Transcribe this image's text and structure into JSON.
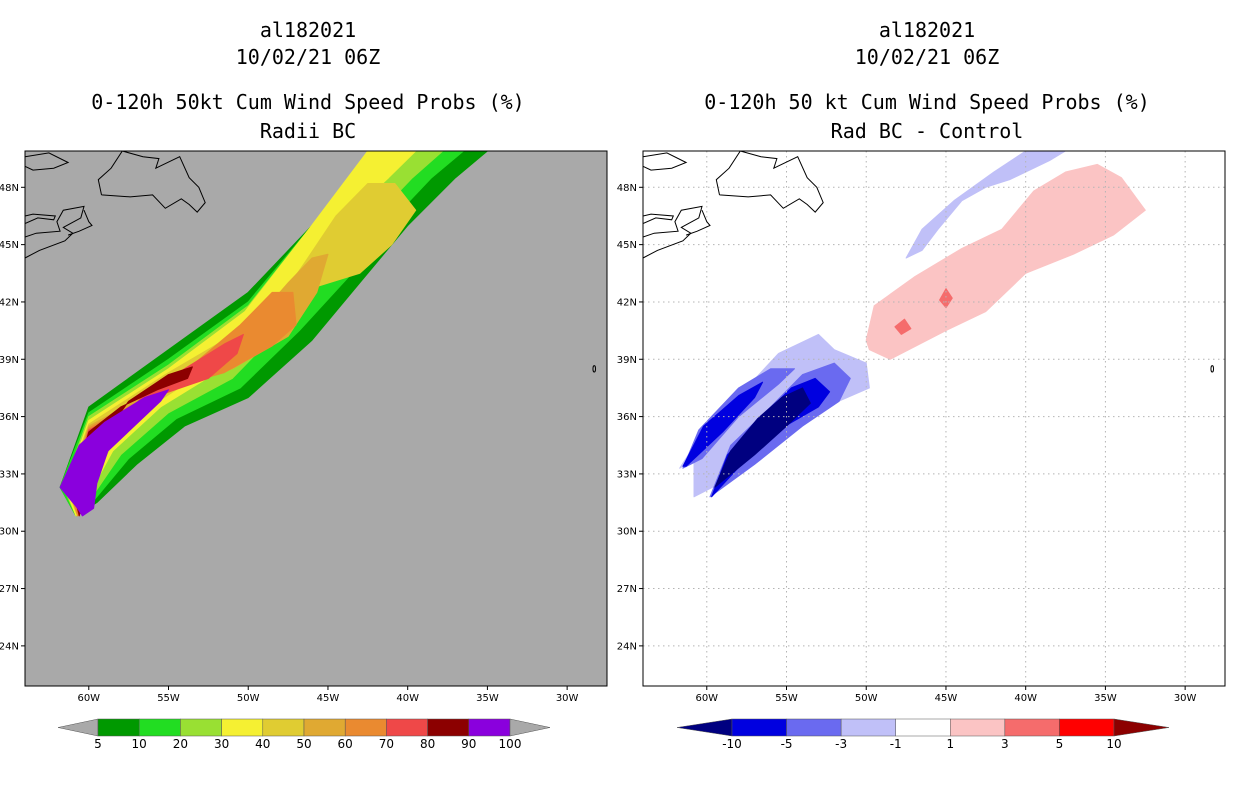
{
  "chart_data": [
    {
      "type": "heatmap",
      "title_lines": [
        "al182021",
        "10/02/21 06Z",
        "0-120h 50kt Cum Wind Speed Probs (%)",
        "Radii BC"
      ],
      "xlabel": "",
      "ylabel": "",
      "x_ticks": [
        "60W",
        "55W",
        "50W",
        "45W",
        "40W",
        "35W",
        "30W"
      ],
      "x_tick_values": [
        -60,
        -55,
        -50,
        -45,
        -40,
        -35,
        -30
      ],
      "y_ticks": [
        "24N",
        "27N",
        "30N",
        "33N",
        "36N",
        "39N",
        "42N",
        "45N",
        "48N"
      ],
      "y_tick_values": [
        24,
        27,
        30,
        33,
        36,
        39,
        42,
        45,
        48
      ],
      "lon_range": [
        -64,
        -27.5
      ],
      "lat_range": [
        21.9,
        49.9
      ],
      "background_color": "#a9a9a9",
      "grid": false,
      "legend": {
        "placement": "bottom",
        "labels": [
          "5",
          "10",
          "20",
          "30",
          "40",
          "50",
          "60",
          "70",
          "80",
          "90",
          "100"
        ],
        "colors": [
          "#009900",
          "#22dd22",
          "#99e033",
          "#f5f032",
          "#e0cc32",
          "#e0a932",
          "#ea8a30",
          "#ef4848",
          "#8c0000",
          "#8a00dd"
        ],
        "under_color": "#a9a9a9",
        "over_color": "#a9a9a9"
      },
      "series": [
        {
          "name": "5",
          "color": "#009900",
          "lon": [
            -60.8,
            -59.5,
            -57,
            -54,
            -50,
            -46,
            -43,
            -40,
            -37,
            -35,
            -32.8,
            -38,
            -42,
            -46,
            -50,
            -55,
            -60,
            -61.8
          ],
          "lat": [
            30.8,
            31.5,
            33.5,
            35.5,
            37,
            40,
            43,
            46,
            48.5,
            49.9,
            49.9,
            49.9,
            49.9,
            46,
            42.5,
            39.5,
            36.5,
            32.3
          ]
        },
        {
          "name": "10",
          "color": "#22dd22",
          "lon": [
            -60.8,
            -59.7,
            -57.5,
            -54.5,
            -50.5,
            -46.8,
            -43.5,
            -41,
            -38.5,
            -36.5,
            -34.2,
            -38,
            -42,
            -46,
            -50,
            -55,
            -60,
            -61.8
          ],
          "lat": [
            30.8,
            31.6,
            33.8,
            35.9,
            37.5,
            40.5,
            43.5,
            46.3,
            48.5,
            49.9,
            49.9,
            49.9,
            49.9,
            46,
            42,
            39,
            36.2,
            32.3
          ]
        },
        {
          "name": "20",
          "color": "#99e033",
          "lon": [
            -60.8,
            -59.8,
            -58,
            -55,
            -51,
            -47.5,
            -44.5,
            -42,
            -39.7,
            -37.8,
            -36,
            -38.5,
            -42,
            -46,
            -50,
            -55,
            -60,
            -61.6
          ],
          "lat": [
            30.8,
            31.8,
            34,
            36.2,
            38,
            41,
            44,
            46.5,
            48.5,
            49.9,
            49.9,
            49.9,
            49.9,
            46,
            41.8,
            38.7,
            36,
            32.3
          ]
        },
        {
          "name": "30",
          "color": "#f5f032",
          "lon": [
            -60.8,
            -60,
            -58.5,
            -55.5,
            -52,
            -48.5,
            -45.8,
            -43.5,
            -41.2,
            -39.5,
            -37.5,
            -40,
            -42.5,
            -46.2,
            -50.2,
            -55,
            -60,
            -61.5
          ],
          "lat": [
            30.8,
            31.9,
            34.2,
            36.5,
            38.3,
            41.2,
            44.2,
            46.7,
            48.5,
            49.9,
            49.9,
            49.9,
            49.9,
            45.8,
            41.5,
            38.5,
            35.8,
            32.3
          ]
        },
        {
          "name": "40",
          "color": "#e0cc32",
          "lon": [
            -60.7,
            -60,
            -58.7,
            -56,
            -52.5,
            -49,
            -46.5,
            -44.5,
            -42.5,
            -40.8,
            -39.5,
            -41,
            -43,
            -46.5,
            -50.5,
            -55.2,
            -60,
            -61.4
          ],
          "lat": [
            30.8,
            32,
            34.3,
            36.6,
            38.5,
            41,
            44,
            46.5,
            48.2,
            48.2,
            46.8,
            45,
            43.5,
            42.6,
            40.5,
            38.2,
            35.6,
            32.3
          ]
        },
        {
          "name": "50",
          "color": "#e0a932",
          "lon": [
            -60.7,
            -60,
            -58.8,
            -56.3,
            -53,
            -49.8,
            -47.5,
            -46,
            -45,
            -45.7,
            -47.5,
            -51,
            -55.5,
            -60,
            -61.3
          ],
          "lat": [
            30.8,
            32,
            34.4,
            36.7,
            38.6,
            40.8,
            43,
            44.3,
            44.5,
            42.5,
            40.2,
            38.5,
            37.5,
            35.5,
            32.3
          ]
        },
        {
          "name": "60",
          "color": "#ea8a30",
          "lon": [
            -60.7,
            -60.1,
            -59,
            -56.6,
            -53.5,
            -50.5,
            -48.5,
            -47.2,
            -47,
            -48.5,
            -51.5,
            -55.7,
            -60,
            -61.2
          ],
          "lat": [
            30.8,
            32,
            34.5,
            36.8,
            38.7,
            40.8,
            42.5,
            42.5,
            40.8,
            39.7,
            38.3,
            37.3,
            35.4,
            32.3
          ]
        },
        {
          "name": "70",
          "color": "#ef4848",
          "lon": [
            -60.6,
            -60.1,
            -59.2,
            -56.8,
            -54,
            -51.5,
            -50.3,
            -50.7,
            -52.5,
            -56,
            -60,
            -61.1
          ],
          "lat": [
            30.8,
            32.1,
            34.6,
            36.9,
            38.5,
            39.8,
            40.3,
            39.3,
            38,
            37,
            35.3,
            32.3
          ]
        },
        {
          "name": "80",
          "color": "#8c0000",
          "lon": [
            -60.6,
            -60.2,
            -59.3,
            -57.5,
            -55,
            -53.5,
            -53.8,
            -55.7,
            -58,
            -60,
            -61
          ],
          "lat": [
            30.8,
            32.1,
            34.7,
            36.8,
            38.2,
            38.6,
            38,
            37.4,
            36.5,
            35.2,
            32.3
          ]
        },
        {
          "name": "90",
          "color": "#8a00dd",
          "lon": [
            -60.4,
            -60.7,
            -61.8,
            -60.6,
            -59,
            -56.5,
            -55,
            -55.5,
            -58.8,
            -59.5,
            -59.7
          ],
          "lat": [
            30.8,
            31.2,
            32.3,
            34.5,
            35.7,
            37,
            37.4,
            36.8,
            34.2,
            32.5,
            31.2
          ]
        }
      ]
    },
    {
      "type": "heatmap",
      "title_lines": [
        "al182021",
        "10/02/21 06Z",
        "0-120h 50 kt Cum Wind Speed Probs (%)",
        "Rad BC - Control"
      ],
      "xlabel": "",
      "ylabel": "",
      "x_ticks": [
        "60W",
        "55W",
        "50W",
        "45W",
        "40W",
        "35W",
        "30W"
      ],
      "x_tick_values": [
        -60,
        -55,
        -50,
        -45,
        -40,
        -35,
        -30
      ],
      "y_ticks": [
        "24N",
        "27N",
        "30N",
        "33N",
        "36N",
        "39N",
        "42N",
        "45N",
        "48N"
      ],
      "y_tick_values": [
        24,
        27,
        30,
        33,
        36,
        39,
        42,
        45,
        48
      ],
      "lon_range": [
        -64,
        -27.5
      ],
      "lat_range": [
        21.9,
        49.9
      ],
      "background_color": "#ffffff",
      "grid": true,
      "legend": {
        "placement": "bottom",
        "labels": [
          "-10",
          "-5",
          "-3",
          "-1",
          "1",
          "3",
          "5",
          "10"
        ],
        "colors": [
          "#0000e0",
          "#6a6af0",
          "#c0c0f8",
          "#ffffff",
          "#fbc4c4",
          "#f56c6c",
          "#ff0000"
        ],
        "under_color": "#000080",
        "over_color": "#8c0000"
      },
      "series": [
        {
          "name": "-1",
          "color": "#c0c0f8",
          "lon": [
            -60.8,
            -61.7,
            -60,
            -57.5,
            -55.5,
            -53,
            -52,
            -50,
            -49.8,
            -52,
            -55,
            -58,
            -60.8
          ],
          "lat": [
            33.8,
            33.3,
            35.5,
            37.5,
            39.3,
            40.3,
            39.5,
            38.8,
            37.5,
            36.7,
            35,
            33,
            31.8
          ]
        },
        {
          "name": "-1",
          "color": "#c0c0f8",
          "lon": [
            -47.5,
            -46.5,
            -44.5,
            -42,
            -40,
            -39,
            -37.5,
            -38.5,
            -41,
            -42.5,
            -44,
            -45.5,
            -46.5,
            -47.5
          ],
          "lat": [
            44.3,
            45.8,
            47.3,
            48.8,
            49.9,
            49.9,
            49.9,
            49.4,
            48.4,
            48,
            47.3,
            45.8,
            44.7,
            44.3
          ]
        },
        {
          "name": "-3",
          "color": "#6a6af0",
          "lon": [
            -61.5,
            -60.5,
            -58,
            -56,
            -54.5,
            -55.5,
            -58,
            -60.3
          ],
          "lat": [
            33.3,
            35.3,
            37.5,
            38.5,
            38.5,
            37.7,
            36,
            33.8
          ]
        },
        {
          "name": "-3",
          "color": "#6a6af0",
          "lon": [
            -59.8,
            -58.5,
            -56,
            -54,
            -52,
            -51,
            -51.7,
            -54,
            -57,
            -59.8
          ],
          "lat": [
            31.8,
            34.5,
            36.5,
            38.2,
            38.8,
            38,
            36.8,
            35.5,
            33.5,
            31.8
          ]
        },
        {
          "name": "-5",
          "color": "#0000e0",
          "lon": [
            -61.5,
            -60.2,
            -58,
            -56.5,
            -57,
            -59,
            -61.3
          ],
          "lat": [
            33.4,
            35.5,
            37.1,
            37.8,
            37,
            35.2,
            33.4
          ]
        },
        {
          "name": "-5",
          "color": "#0000e0",
          "lon": [
            -59.7,
            -58.7,
            -56.5,
            -54.7,
            -53.2,
            -52.3,
            -53,
            -55.5,
            -57.5,
            -59.7
          ],
          "lat": [
            31.8,
            34,
            36,
            37.5,
            38,
            37.3,
            36.5,
            35.3,
            33.8,
            31.8
          ]
        },
        {
          "name": "-10",
          "color": "#000080",
          "lon": [
            -59.5,
            -58.5,
            -56.8,
            -55.3,
            -54,
            -53.5,
            -55,
            -57,
            -59.5
          ],
          "lat": [
            32.3,
            34.2,
            35.9,
            37,
            37.5,
            36.7,
            35.5,
            34,
            32.3
          ]
        },
        {
          "name": "1",
          "color": "#fbc4c4",
          "lon": [
            -50,
            -49.5,
            -47,
            -44,
            -41.5,
            -39.5,
            -37.5,
            -35.5,
            -34,
            -32.5,
            -34.5,
            -37,
            -40,
            -42.5,
            -45,
            -48.5,
            -49.8
          ],
          "lat": [
            40,
            41.8,
            43.3,
            44.8,
            45.8,
            47.8,
            48.8,
            49.2,
            48.5,
            46.8,
            45.5,
            44.5,
            43.5,
            41.5,
            40.5,
            39,
            39.5
          ]
        },
        {
          "name": "3",
          "color": "#f56c6c",
          "lon": [
            -48.2,
            -47.6,
            -47.2,
            -47.8
          ],
          "lat": [
            40.7,
            41.1,
            40.6,
            40.3
          ]
        },
        {
          "name": "3",
          "color": "#f56c6c",
          "lon": [
            -45.4,
            -45,
            -44.6,
            -45
          ],
          "lat": [
            42.1,
            42.7,
            42.2,
            41.7
          ]
        }
      ]
    }
  ]
}
